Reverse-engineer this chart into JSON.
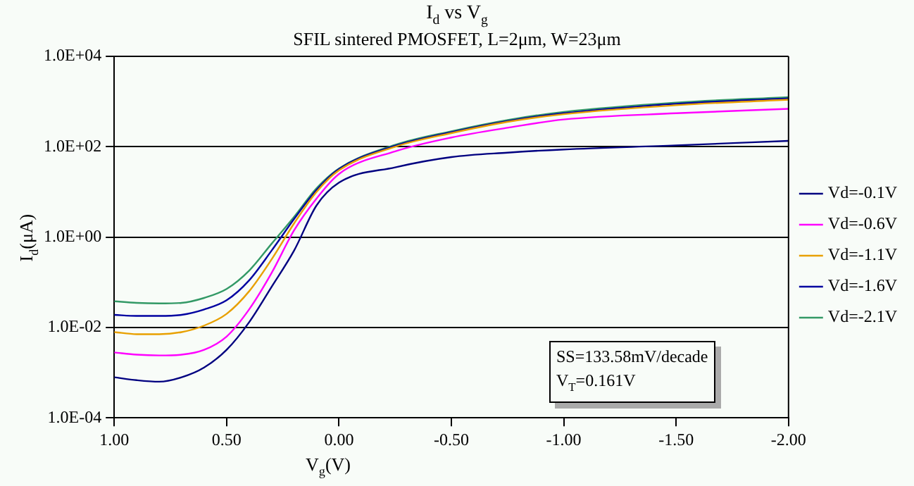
{
  "chart_data": {
    "type": "line",
    "title": "I$_{d}$ vs V$_{g}$",
    "subtitle": "SFIL sintered PMOSFET, L=2μm, W=23μm",
    "xlabel": "V$_{g}$(V)",
    "ylabel": "I$_{d}$(μA)",
    "x": [
      1.0,
      0.9,
      0.8,
      0.7,
      0.6,
      0.5,
      0.4,
      0.3,
      0.2,
      0.1,
      0.0,
      -0.25,
      -0.5,
      -0.75,
      -1.0,
      -1.5,
      -2.0
    ],
    "series": [
      {
        "name": "Vd=-0.1V",
        "color": "#000080",
        "values": [
          0.00079,
          0.00068,
          0.00063,
          0.00079,
          0.0013,
          0.0032,
          0.013,
          0.079,
          0.5,
          5,
          16,
          35,
          59,
          74,
          87,
          107,
          135
        ]
      },
      {
        "name": "Vd=-0.6V",
        "color": "#ff00ff",
        "values": [
          0.0028,
          0.0025,
          0.0024,
          0.0025,
          0.0032,
          0.0063,
          0.025,
          0.16,
          1.4,
          7.1,
          25,
          79,
          160,
          263,
          400,
          550,
          690
        ]
      },
      {
        "name": "Vd=-1.1V",
        "color": "#e8a000",
        "values": [
          0.0079,
          0.0071,
          0.0071,
          0.0079,
          0.011,
          0.02,
          0.063,
          0.32,
          2,
          10,
          30,
          100,
          200,
          355,
          525,
          830,
          1100
        ]
      },
      {
        "name": "Vd=-1.6V",
        "color": "#0000a0",
        "values": [
          0.019,
          0.018,
          0.018,
          0.019,
          0.025,
          0.04,
          0.11,
          0.5,
          2.5,
          11,
          32,
          105,
          210,
          370,
          550,
          890,
          1175
        ]
      },
      {
        "name": "Vd=-2.1V",
        "color": "#339966",
        "values": [
          0.038,
          0.035,
          0.034,
          0.035,
          0.045,
          0.071,
          0.18,
          0.71,
          2.8,
          12,
          33,
          110,
          220,
          390,
          590,
          950,
          1250
        ]
      }
    ],
    "xlim": [
      1.0,
      -2.0
    ],
    "xticks": [
      {
        "value": 1.0,
        "label": "1.00"
      },
      {
        "value": 0.5,
        "label": "0.50"
      },
      {
        "value": 0.0,
        "label": "0.00"
      },
      {
        "value": -0.5,
        "label": "-0.50"
      },
      {
        "value": -1.0,
        "label": "-1.00"
      },
      {
        "value": -1.5,
        "label": "-1.50"
      },
      {
        "value": -2.0,
        "label": "-2.00"
      }
    ],
    "ylim": [
      0.0001,
      10000
    ],
    "yticks": [
      {
        "value": 0.0001,
        "label": "1.0E-04"
      },
      {
        "value": 0.01,
        "label": "1.0E-02"
      },
      {
        "value": 1,
        "label": "1.0E+00"
      },
      {
        "value": 100,
        "label": "1.0E+02"
      },
      {
        "value": 10000,
        "label": "1.0E+04"
      }
    ],
    "log": "y",
    "grid": "y",
    "legend": "right",
    "marker": "none",
    "line_style": "solid",
    "annotations": [
      "SS=133.58mV/decade",
      "V$_{T}$=0.161V"
    ]
  }
}
